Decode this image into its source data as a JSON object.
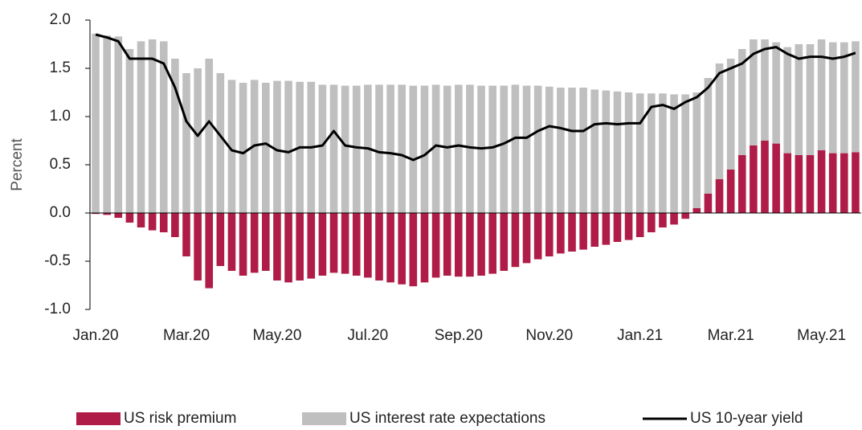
{
  "chart_data": {
    "type": "bar",
    "y_label": "Percent",
    "categories": [
      "Jan.20",
      null,
      null,
      null,
      null,
      null,
      null,
      null,
      "Mar.20",
      null,
      null,
      null,
      null,
      null,
      null,
      null,
      "May.20",
      null,
      null,
      null,
      null,
      null,
      null,
      null,
      "Jul.20",
      null,
      null,
      null,
      null,
      null,
      null,
      null,
      "Sep.20",
      null,
      null,
      null,
      null,
      null,
      null,
      null,
      "Nov.20",
      null,
      null,
      null,
      null,
      null,
      null,
      null,
      "Jan.21",
      null,
      null,
      null,
      null,
      null,
      null,
      null,
      "Mar.21",
      null,
      null,
      null,
      null,
      null,
      null,
      null,
      "May.21",
      null,
      null,
      null
    ],
    "series": [
      {
        "name": "US risk premium",
        "color": "#b01c48",
        "kind": "bar",
        "values": [
          -0.01,
          -0.02,
          -0.05,
          -0.1,
          -0.15,
          -0.18,
          -0.2,
          -0.25,
          -0.45,
          -0.7,
          -0.78,
          -0.55,
          -0.6,
          -0.65,
          -0.62,
          -0.6,
          -0.7,
          -0.72,
          -0.7,
          -0.68,
          -0.65,
          -0.62,
          -0.63,
          -0.65,
          -0.67,
          -0.7,
          -0.72,
          -0.74,
          -0.76,
          -0.72,
          -0.67,
          -0.65,
          -0.66,
          -0.66,
          -0.65,
          -0.63,
          -0.6,
          -0.56,
          -0.52,
          -0.48,
          -0.45,
          -0.42,
          -0.4,
          -0.38,
          -0.35,
          -0.33,
          -0.3,
          -0.28,
          -0.25,
          -0.2,
          -0.15,
          -0.12,
          -0.06,
          0.05,
          0.2,
          0.35,
          0.45,
          0.6,
          0.7,
          0.75,
          0.72,
          0.62,
          0.6,
          0.6,
          0.65,
          0.62,
          0.62,
          0.63
        ]
      },
      {
        "name": "US interest rate expectations",
        "color": "#bfbfbf",
        "kind": "bar",
        "values": [
          1.86,
          1.84,
          1.83,
          1.7,
          1.78,
          1.8,
          1.78,
          1.6,
          1.45,
          1.5,
          1.6,
          1.45,
          1.38,
          1.35,
          1.38,
          1.35,
          1.37,
          1.37,
          1.36,
          1.36,
          1.33,
          1.33,
          1.32,
          1.32,
          1.33,
          1.33,
          1.33,
          1.33,
          1.32,
          1.32,
          1.33,
          1.32,
          1.33,
          1.33,
          1.32,
          1.32,
          1.32,
          1.33,
          1.32,
          1.32,
          1.31,
          1.3,
          1.3,
          1.3,
          1.28,
          1.27,
          1.26,
          1.25,
          1.24,
          1.24,
          1.24,
          1.23,
          1.23,
          1.2,
          1.2,
          1.2,
          1.15,
          1.1,
          1.1,
          1.05,
          1.05,
          1.1,
          1.15,
          1.15,
          1.15,
          1.15,
          1.15,
          1.15
        ]
      },
      {
        "name": "US 10-year yield",
        "color": "#000000",
        "kind": "line",
        "values": [
          1.85,
          1.82,
          1.78,
          1.6,
          1.6,
          1.6,
          1.55,
          1.3,
          0.95,
          0.8,
          0.95,
          0.8,
          0.65,
          0.62,
          0.7,
          0.72,
          0.65,
          0.63,
          0.68,
          0.68,
          0.7,
          0.85,
          0.7,
          0.68,
          0.67,
          0.63,
          0.62,
          0.6,
          0.55,
          0.6,
          0.7,
          0.68,
          0.7,
          0.68,
          0.67,
          0.68,
          0.72,
          0.78,
          0.78,
          0.85,
          0.9,
          0.88,
          0.85,
          0.85,
          0.92,
          0.93,
          0.92,
          0.93,
          0.93,
          1.1,
          1.12,
          1.08,
          1.15,
          1.2,
          1.3,
          1.45,
          1.5,
          1.55,
          1.65,
          1.7,
          1.72,
          1.65,
          1.6,
          1.62,
          1.62,
          1.6,
          1.62,
          1.66
        ]
      }
    ],
    "ylim": [
      -1.0,
      2.0
    ],
    "yticks": [
      {
        "value": 2.0,
        "label": "2.0"
      },
      {
        "value": 1.5,
        "label": "1.5"
      },
      {
        "value": 1.0,
        "label": "1.0"
      },
      {
        "value": 0.5,
        "label": "0.5"
      },
      {
        "value": 0.0,
        "label": "0.0"
      },
      {
        "value": -0.5,
        "label": "-0.5"
      },
      {
        "value": -1.0,
        "label": "-1.0"
      }
    ],
    "legend": "bottom"
  }
}
